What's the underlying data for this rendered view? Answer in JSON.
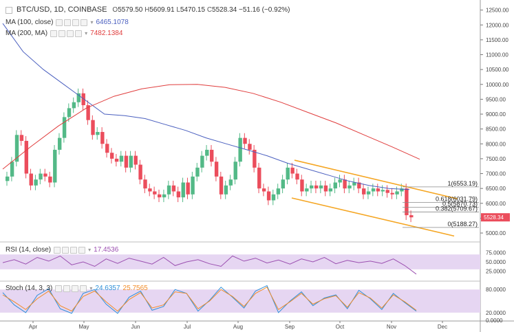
{
  "header": {
    "symbol": "BTC/USD, 1D, COINBASE",
    "ohlc": [
      {
        "k": "O",
        "v": "5579.50"
      },
      {
        "k": "H",
        "v": "5609.91"
      },
      {
        "k": "L",
        "v": "5470.15"
      },
      {
        "k": "C",
        "v": "5528.34"
      }
    ],
    "change": "−51.16 (−0.92%)"
  },
  "indicators": {
    "ma100": {
      "label": "MA (100, close)",
      "value": "6465.1078",
      "color": "#4a5fbf"
    },
    "ma200": {
      "label": "MA (200, MA)",
      "value": "7482.1384",
      "color": "#e03c3c"
    },
    "rsi": {
      "label": "RSI (14, close)",
      "value": "17.4536",
      "color": "#9b4fb0"
    },
    "stoch": {
      "label": "Stoch (14, 3, 3)",
      "k_value": "24.6357",
      "d_value": "25.7565",
      "k_color": "#2d8fd8",
      "d_color": "#f28c28"
    }
  },
  "colors": {
    "up": "#53b987",
    "down": "#eb4d5c",
    "channel": "#f5a623",
    "fib": "#888888",
    "band_fill": "#e6d6f2",
    "last_price_bg": "#eb4d5c"
  },
  "last_price": "5528.34",
  "fib_labels": [
    "1(6553.19)",
    "0.618(6031.79)",
    "0.5(5870.73)",
    "0.382(5709.67)",
    "0(5188.27)"
  ],
  "chart_data": {
    "type": "candlestick",
    "x_labels": [
      "Apr",
      "May",
      "Jun",
      "Jul",
      "Aug",
      "Sep",
      "Oct",
      "Nov",
      "Dec"
    ],
    "y_ticks": [
      "12500.00",
      "12000.00",
      "11500.00",
      "11000.00",
      "10500.00",
      "10000.00",
      "9500.00",
      "9000.00",
      "8500.00",
      "8000.00",
      "7500.00",
      "7000.00",
      "6500.00",
      "6000.00",
      "5500.00",
      "5000.00"
    ],
    "rsi_ticks": [
      "75.0000",
      "50.0000",
      "25.0000"
    ],
    "stoch_ticks": [
      "80.0000",
      "20.0000",
      "0.0000"
    ],
    "ylim": [
      4700,
      12700
    ],
    "close_path": [
      6900,
      7400,
      8300,
      8100,
      7000,
      6600,
      6800,
      7000,
      6900,
      6700,
      7800,
      8200,
      8900,
      9200,
      9400,
      9700,
      9300,
      8800,
      8300,
      8400,
      8000,
      7700,
      7500,
      7400,
      7600,
      7200,
      7600,
      7300,
      6800,
      6500,
      6400,
      6300,
      6200,
      6300,
      6600,
      6400,
      6200,
      6700,
      6300,
      6900,
      7200,
      7600,
      7800,
      7400,
      6900,
      6300,
      6600,
      6800,
      7400,
      8200,
      8000,
      7800,
      7200,
      6500,
      6400,
      6100,
      6300,
      6500,
      6800,
      7200,
      7000,
      6800,
      6400,
      6500,
      6600,
      6500,
      6600,
      6400,
      6500,
      6700,
      6800,
      6500,
      6600,
      6700,
      6500,
      6300,
      6400,
      6500,
      6400,
      6450,
      6350,
      6300,
      6400,
      6500,
      5600,
      5528
    ],
    "ma100": [
      12050,
      11100,
      10500,
      10000,
      9500,
      9000,
      8950,
      8850,
      8650,
      8450,
      8200,
      8000,
      7800,
      7600,
      7350,
      7150,
      6950,
      6750,
      6600,
      6500,
      6465
    ],
    "ma200": [
      7150,
      7900,
      8600,
      9200,
      9600,
      9850,
      9990,
      10000,
      9900,
      9700,
      9400,
      9050,
      8700,
      8300,
      7900,
      7482
    ],
    "rsi": [
      48,
      56,
      44,
      62,
      52,
      66,
      42,
      50,
      38,
      58,
      46,
      60,
      52,
      44,
      62,
      40,
      50,
      56,
      45,
      38,
      66,
      52,
      60,
      47,
      55,
      44,
      58,
      50,
      62,
      45,
      54,
      48,
      52,
      46,
      58,
      40,
      17
    ],
    "stoch_k": [
      72,
      40,
      20,
      65,
      82,
      30,
      18,
      70,
      80,
      42,
      18,
      60,
      76,
      26,
      36,
      80,
      70,
      24,
      52,
      86,
      60,
      32,
      76,
      90,
      20,
      50,
      74,
      38,
      58,
      66,
      30,
      78,
      56,
      28,
      70,
      46,
      24
    ],
    "stoch_d": [
      66,
      48,
      28,
      56,
      76,
      38,
      24,
      62,
      76,
      48,
      24,
      54,
      72,
      32,
      40,
      74,
      70,
      30,
      50,
      80,
      62,
      36,
      70,
      86,
      28,
      48,
      70,
      42,
      56,
      64,
      34,
      72,
      58,
      32,
      66,
      48,
      26
    ]
  }
}
